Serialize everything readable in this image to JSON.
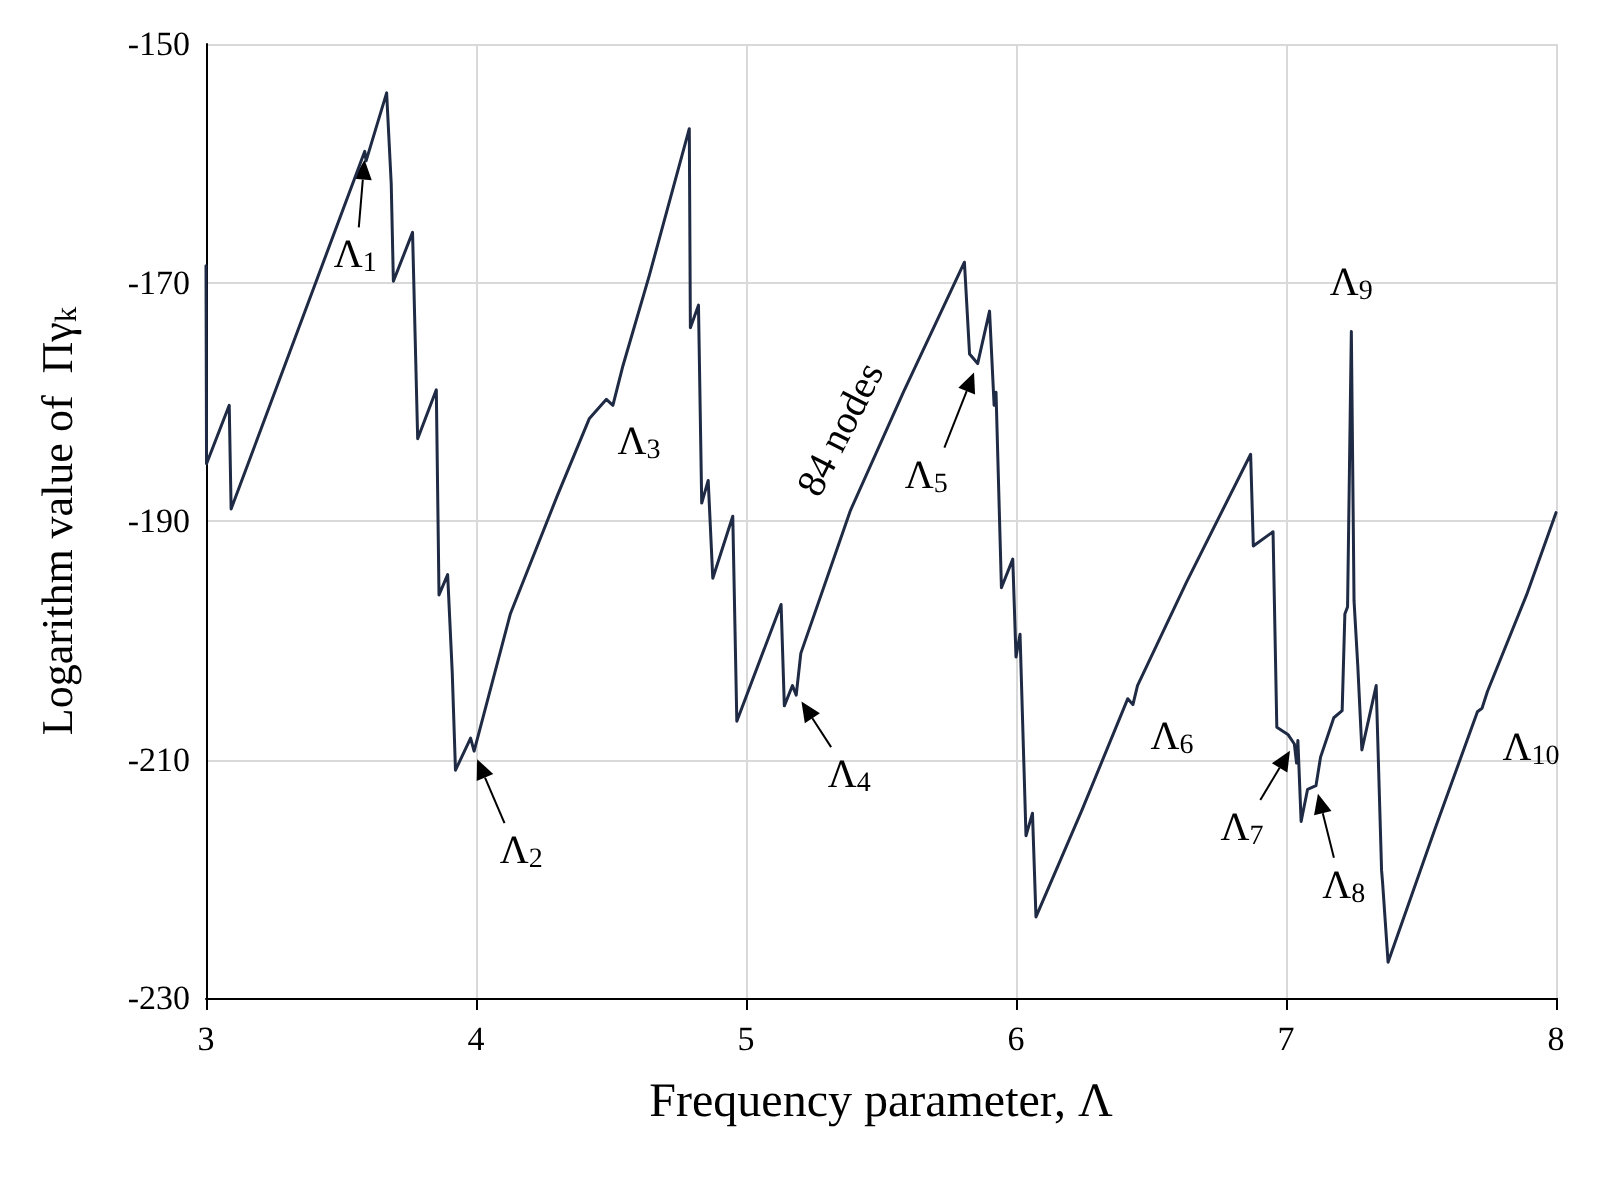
{
  "chart_data": {
    "type": "line",
    "xlabel": "Frequency parameter, Λ",
    "ylabel": "Logarithm value of  Πγ$_{k}$",
    "xlim": [
      3,
      8
    ],
    "xticks": [
      3,
      4,
      5,
      6,
      7,
      8
    ],
    "ylim": [
      -230,
      -150
    ],
    "yticks": [
      -230,
      -210,
      -190,
      -170,
      -150
    ],
    "grid": true,
    "marker": "none",
    "line_style": "solid",
    "series": [
      {
        "color": "#1f2a44",
        "x": [
          3.0,
          3.002,
          3.086,
          3.093,
          3.588,
          3.593,
          3.669,
          3.686,
          3.694,
          3.765,
          3.784,
          3.853,
          3.863,
          3.895,
          3.912,
          3.924,
          3.98,
          3.993,
          4.127,
          4.299,
          4.42,
          4.483,
          4.507,
          4.544,
          4.642,
          4.79,
          4.794,
          4.824,
          4.836,
          4.86,
          4.877,
          4.951,
          4.966,
          5.13,
          5.142,
          5.172,
          5.186,
          5.203,
          5.387,
          5.583,
          5.809,
          5.828,
          5.858,
          5.902,
          5.919,
          5.926,
          5.946,
          5.988,
          6.0,
          6.015,
          6.037,
          6.061,
          6.074,
          6.245,
          6.414,
          6.433,
          6.45,
          6.632,
          6.869,
          6.879,
          6.952,
          6.966,
          7.007,
          7.031,
          7.039,
          7.044,
          7.056,
          7.08,
          7.111,
          7.128,
          7.177,
          7.208,
          7.218,
          7.228,
          7.242,
          7.252,
          7.266,
          7.281,
          7.334,
          7.354,
          7.358,
          7.378,
          7.552,
          7.709,
          7.726,
          7.746,
          7.891,
          8.0
        ],
        "values": [
          -168.6,
          -185.2,
          -180.3,
          -189,
          -159,
          -159.8,
          -154.1,
          -161.7,
          -169.9,
          -165.8,
          -183.1,
          -179,
          -196.2,
          -194.5,
          -202.7,
          -210.9,
          -208.2,
          -209.3,
          -197.8,
          -188,
          -181.4,
          -179.8,
          -180.3,
          -177,
          -169.4,
          -157.1,
          -173.8,
          -171.9,
          -188.5,
          -186.6,
          -194.8,
          -189.6,
          -206.8,
          -197,
          -205.5,
          -203.8,
          -204.6,
          -201.1,
          -189.1,
          -179.2,
          -168.3,
          -176,
          -176.8,
          -172.4,
          -180.3,
          -179.2,
          -195.6,
          -193.2,
          -201.4,
          -199.5,
          -216.4,
          -214.5,
          -223.2,
          -214.2,
          -204.9,
          -205.4,
          -203.8,
          -195.1,
          -184.4,
          -192.1,
          -190.9,
          -207.3,
          -207.9,
          -208.7,
          -210.3,
          -208.4,
          -215.2,
          -212.5,
          -212.2,
          -209.8,
          -206.5,
          -205.9,
          -197.8,
          -197.2,
          -174.1,
          -196.7,
          -202.2,
          -209.2,
          -203.8,
          -219.3,
          -220.4,
          -227,
          -215.8,
          -206,
          -205.7,
          -204.3,
          -196.2,
          -189.3
        ]
      }
    ],
    "annotations": [
      {
        "text": "Λ$_{1}$",
        "x": 3.59,
        "y": -159
      },
      {
        "text": "Λ$_{2}$",
        "x": 3.99,
        "y": -209.3
      },
      {
        "text": "Λ$_{3}$",
        "x": 4.5,
        "y": -180
      },
      {
        "text": "Λ$_{4}$",
        "x": 5.19,
        "y": -204.6
      },
      {
        "text": "Λ$_{5}$",
        "x": 5.86,
        "y": -176.8
      },
      {
        "text": "Λ$_{6}$",
        "x": 6.43,
        "y": -205.4
      },
      {
        "text": "Λ$_{7}$",
        "x": 7.03,
        "y": -208.7
      },
      {
        "text": "Λ$_{8}$",
        "x": 7.11,
        "y": -212.2
      },
      {
        "text": "Λ$_{9}$",
        "x": 7.242,
        "y": -174.1
      },
      {
        "text": "Λ$_{10}$",
        "x": 7.73,
        "y": -205.7
      },
      {
        "text": "84 nodes",
        "x": 5.5,
        "y": -183
      }
    ]
  }
}
